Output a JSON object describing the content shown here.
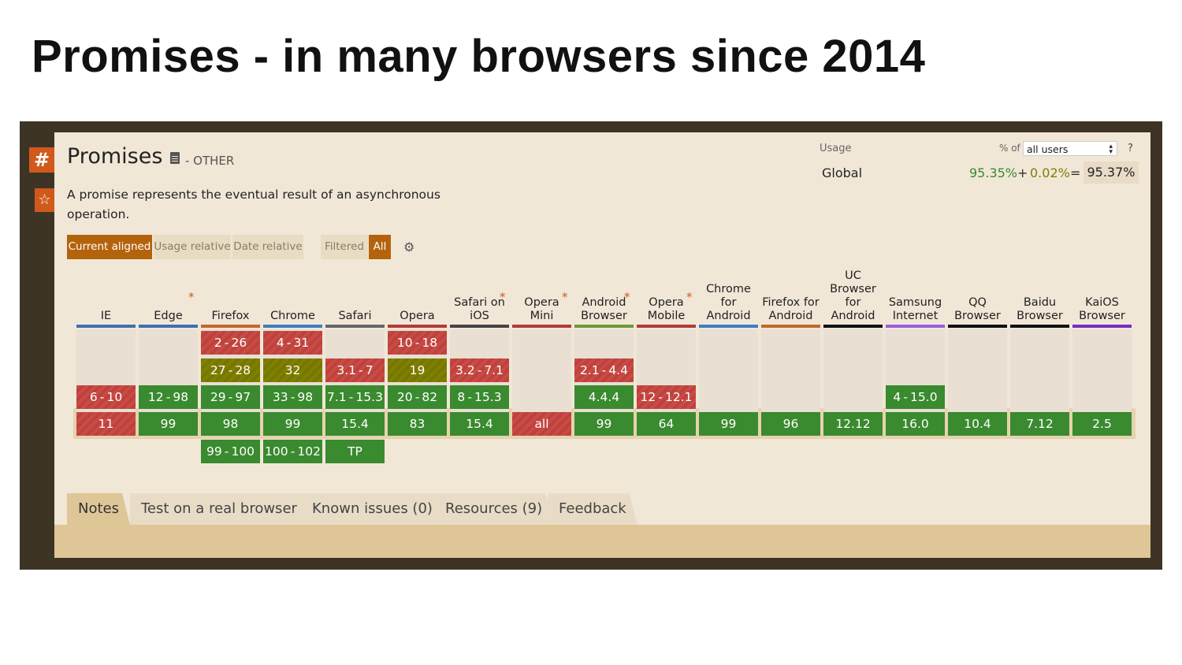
{
  "slide": {
    "title": "Promises - in many browsers since 2014"
  },
  "sidebar": {
    "hash_label": "#",
    "star_icon": "star-icon"
  },
  "feature": {
    "title": "Promises",
    "category": "- OTHER",
    "description": "A promise represents the eventual result of an asynchronous operation."
  },
  "usage": {
    "label": "Usage",
    "region": "Global",
    "percent_of_label": "% of",
    "user_select": "all users",
    "help": "?",
    "supported": "95.35%",
    "plus": "+",
    "partial": "0.02%",
    "equals": "=",
    "total": "95.37%"
  },
  "view_buttons": {
    "current_aligned": "Current aligned",
    "usage_relative": "Usage relative",
    "date_relative": "Date relative",
    "filtered": "Filtered",
    "all": "All"
  },
  "colors": {
    "supported": "#3a8a2f",
    "unsupported": "#c1403a",
    "partial": "#808000",
    "accent": "#b4630d"
  },
  "browsers": [
    {
      "name": "IE",
      "star": false,
      "line": "#3f6fb4",
      "cells": [
        null,
        null,
        {
          "v": "6-10",
          "s": "n"
        },
        {
          "v": "11",
          "s": "n"
        },
        null
      ]
    },
    {
      "name": "Edge",
      "star": true,
      "line": "#3f6fb4",
      "cells": [
        null,
        null,
        {
          "v": "12-98",
          "s": "y"
        },
        {
          "v": "99",
          "s": "y"
        },
        null
      ]
    },
    {
      "name": "Firefox",
      "star": false,
      "line": "#c0692c",
      "cells": [
        {
          "v": "2-26",
          "s": "n"
        },
        {
          "v": "27-28",
          "s": "a"
        },
        {
          "v": "29-97",
          "s": "y"
        },
        {
          "v": "98",
          "s": "y"
        },
        {
          "v": "99-100",
          "s": "y"
        }
      ]
    },
    {
      "name": "Chrome",
      "star": false,
      "line": "#3f7dc5",
      "cells": [
        {
          "v": "4-31",
          "s": "n"
        },
        {
          "v": "32",
          "s": "a"
        },
        {
          "v": "33-98",
          "s": "y"
        },
        {
          "v": "99",
          "s": "y"
        },
        {
          "v": "100-102",
          "s": "y"
        }
      ]
    },
    {
      "name": "Safari",
      "star": false,
      "line": "#666666",
      "cells": [
        null,
        {
          "v": "3.1-7",
          "s": "n"
        },
        {
          "v": "7.1-15.3",
          "s": "y"
        },
        {
          "v": "15.4",
          "s": "y"
        },
        {
          "v": "TP",
          "s": "y"
        }
      ]
    },
    {
      "name": "Opera",
      "star": false,
      "line": "#b33a3a",
      "cells": [
        {
          "v": "10-18",
          "s": "n"
        },
        {
          "v": "19",
          "s": "a"
        },
        {
          "v": "20-82",
          "s": "y"
        },
        {
          "v": "83",
          "s": "y"
        },
        null
      ]
    },
    {
      "name": "Safari on iOS",
      "star": true,
      "line": "#444444",
      "cells": [
        null,
        {
          "v": "3.2-7.1",
          "s": "n"
        },
        {
          "v": "8-15.3",
          "s": "y"
        },
        {
          "v": "15.4",
          "s": "y"
        },
        null
      ]
    },
    {
      "name": "Opera Mini",
      "star": true,
      "line": "#b33a3a",
      "cells": [
        null,
        null,
        null,
        {
          "v": "all",
          "s": "n"
        },
        null
      ]
    },
    {
      "name": "Android Browser",
      "star": true,
      "line": "#6a9a3a",
      "cells": [
        null,
        {
          "v": "2.1-4.4",
          "s": "n"
        },
        {
          "v": "4.4.4",
          "s": "y"
        },
        {
          "v": "99",
          "s": "y"
        },
        null
      ]
    },
    {
      "name": "Opera Mobile",
      "star": true,
      "line": "#b33a3a",
      "cells": [
        null,
        null,
        {
          "v": "12-12.1",
          "s": "n"
        },
        {
          "v": "64",
          "s": "y"
        },
        null
      ]
    },
    {
      "name": "Chrome for Android",
      "star": false,
      "line": "#3f7dc5",
      "cells": [
        null,
        null,
        null,
        {
          "v": "99",
          "s": "y"
        },
        null
      ]
    },
    {
      "name": "Firefox for Android",
      "star": false,
      "line": "#c0692c",
      "cells": [
        null,
        null,
        null,
        {
          "v": "96",
          "s": "y"
        },
        null
      ]
    },
    {
      "name": "UC Browser for Android",
      "star": false,
      "line": "#111111",
      "cells": [
        null,
        null,
        null,
        {
          "v": "12.12",
          "s": "y"
        },
        null
      ]
    },
    {
      "name": "Samsung Internet",
      "star": false,
      "line": "#9a5de0",
      "cells": [
        null,
        null,
        {
          "v": "4-15.0",
          "s": "y"
        },
        {
          "v": "16.0",
          "s": "y"
        },
        null
      ]
    },
    {
      "name": "QQ Browser",
      "star": false,
      "line": "#111111",
      "cells": [
        null,
        null,
        null,
        {
          "v": "10.4",
          "s": "y"
        },
        null
      ]
    },
    {
      "name": "Baidu Browser",
      "star": false,
      "line": "#111111",
      "cells": [
        null,
        null,
        null,
        {
          "v": "7.12",
          "s": "y"
        },
        null
      ]
    },
    {
      "name": "KaiOS Browser",
      "star": false,
      "line": "#7a2cc2",
      "cells": [
        null,
        null,
        null,
        {
          "v": "2.5",
          "s": "y"
        },
        null
      ]
    }
  ],
  "header_lines": {
    "IE": [
      "IE"
    ],
    "Edge": [
      "Edge"
    ],
    "Firefox": [
      "Firefox"
    ],
    "Chrome": [
      "Chrome"
    ],
    "Safari": [
      "Safari"
    ],
    "Opera": [
      "Opera"
    ],
    "Safari on iOS": [
      "Safari on",
      "iOS"
    ],
    "Opera Mini": [
      "Opera Mini"
    ],
    "Android Browser": [
      "Android",
      "Browser"
    ],
    "Opera Mobile": [
      "Opera",
      "Mobile"
    ],
    "Chrome for Android": [
      "Chrome",
      "for",
      "Android"
    ],
    "Firefox for Android": [
      "Firefox for",
      "Android"
    ],
    "UC Browser for Android": [
      "UC",
      "Browser",
      "for",
      "Android"
    ],
    "Samsung Internet": [
      "Samsung",
      "Internet"
    ],
    "QQ Browser": [
      "QQ",
      "Browser"
    ],
    "Baidu Browser": [
      "Baidu",
      "Browser"
    ],
    "KaiOS Browser": [
      "KaiOS",
      "Browser"
    ]
  },
  "tabs": [
    "Notes",
    "Test on a real browser",
    "Known issues (0)",
    "Resources (9)",
    "Feedback"
  ]
}
